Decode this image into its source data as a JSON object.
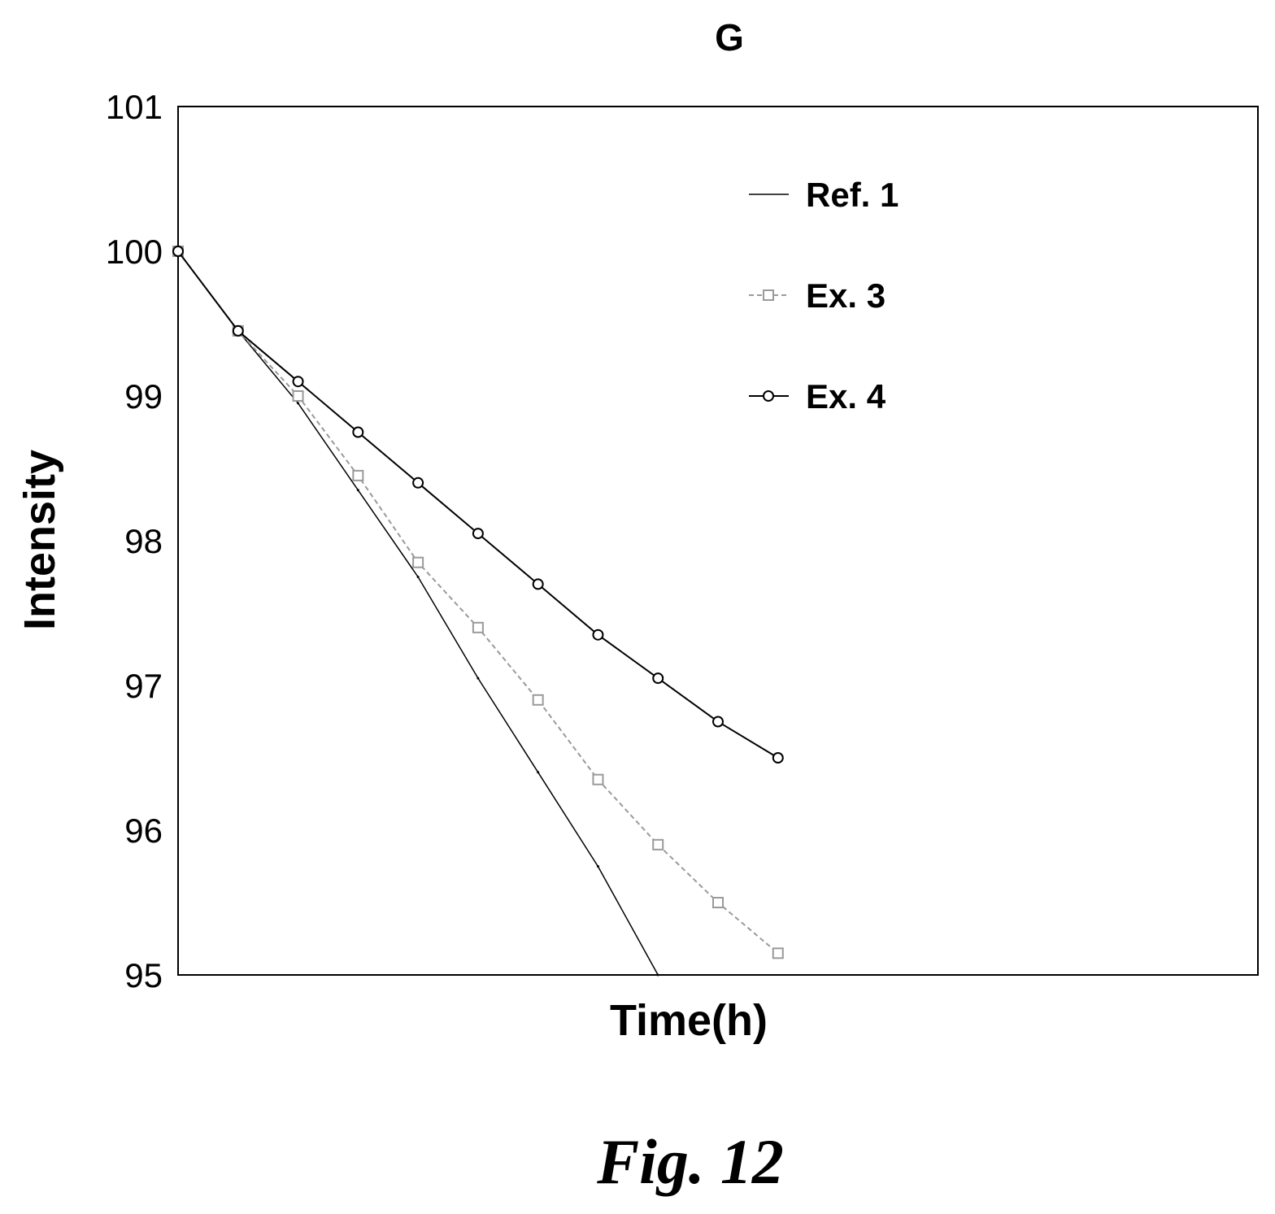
{
  "figure_caption": "Fig. 12",
  "chart_data": {
    "type": "line",
    "title": "G",
    "xlabel": "Time(h)",
    "ylabel": "Intensity",
    "x_ticks_shown": false,
    "x": [
      0,
      10,
      20,
      30,
      40,
      50,
      60,
      70,
      80,
      90,
      100
    ],
    "xlim": [
      0,
      180
    ],
    "ylim": [
      95,
      101
    ],
    "yticks": [
      95,
      96,
      97,
      98,
      99,
      100,
      101
    ],
    "grid": false,
    "legend_position": "top-right",
    "series": [
      {
        "name": "Ref. 1",
        "marker": "none",
        "color": "#000000",
        "values": [
          100.0,
          99.45,
          98.95,
          98.35,
          97.75,
          97.05,
          96.4,
          95.75,
          95.0,
          null,
          null
        ]
      },
      {
        "name": "Ex. 3",
        "marker": "square",
        "color": "#9a9a9a",
        "values": [
          100.0,
          99.45,
          99.0,
          98.45,
          97.85,
          97.4,
          96.9,
          96.35,
          95.9,
          95.5,
          95.15
        ]
      },
      {
        "name": "Ex. 4",
        "marker": "circle",
        "color": "#000000",
        "values": [
          100.0,
          99.45,
          99.1,
          98.75,
          98.4,
          98.05,
          97.7,
          97.35,
          97.05,
          96.75,
          96.5
        ]
      }
    ]
  }
}
